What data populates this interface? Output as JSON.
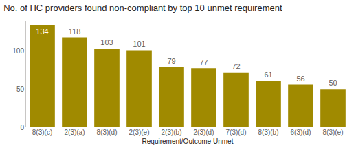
{
  "chart_data": {
    "type": "bar",
    "title": "No. of HC providers found non-compliant by top 10 unmet requirement",
    "x_label": "Requirement/Outcome Unmet",
    "categories": [
      "8(3)(c)",
      "2(3)(a)",
      "8(3)(d)",
      "2(3)(e)",
      "2(3)(b)",
      "2(3)(d)",
      "7(3)(d)",
      "8(3)(b)",
      "6(3)(d)",
      "8(3)(e)"
    ],
    "values": [
      134,
      118,
      103,
      101,
      79,
      77,
      72,
      61,
      56,
      50
    ],
    "color": "#a08a00",
    "ylim": [
      0,
      140
    ],
    "yticks": [
      0,
      50,
      100
    ],
    "grid": false,
    "data_labels": true
  }
}
